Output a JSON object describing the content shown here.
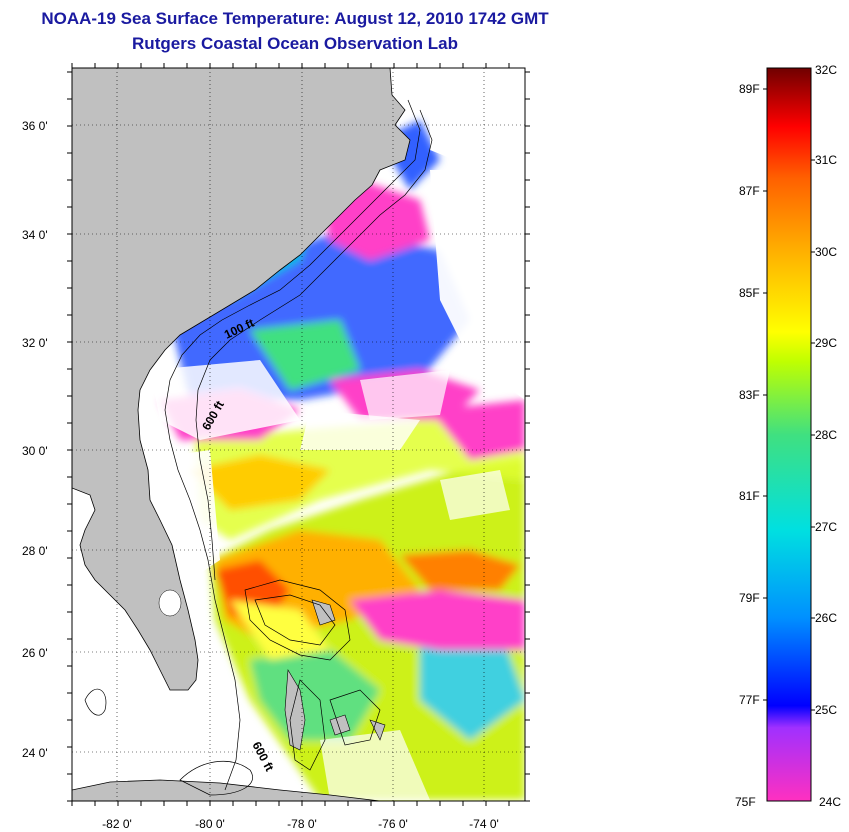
{
  "title": {
    "line1": "NOAA-19 Sea Surface Temperature:  August 12, 2010 1742 GMT",
    "line2": "Rutgers Coastal Ocean Observation Lab"
  },
  "map": {
    "lon_range": [
      -83,
      -73
    ],
    "lat_range": [
      23,
      37
    ],
    "lon_ticks": [
      "-82 0'",
      "-80 0'",
      "-78 0'",
      "-76 0'",
      "-74 0'"
    ],
    "lat_ticks": [
      "36 0'",
      "34 0'",
      "32 0'",
      "30 0'",
      "28 0'",
      "26 0'",
      "24 0'"
    ],
    "contour_labels": [
      "100 ft",
      "600 ft",
      "600 ft"
    ],
    "land_color": "#c0c0c0"
  },
  "colorbar": {
    "celsius_labels": [
      "32C",
      "31C",
      "30C",
      "29C",
      "28C",
      "27C",
      "26C",
      "25C",
      "24C"
    ],
    "fahrenheit_labels": [
      "89F",
      "87F",
      "85F",
      "83F",
      "81F",
      "79F",
      "77F",
      "75F"
    ],
    "range_c": [
      24,
      32
    ],
    "colors": [
      "#ff30c0",
      "#a030ff",
      "#0000ff",
      "#0090ff",
      "#00e0e0",
      "#40e080",
      "#c0ff00",
      "#ffff00",
      "#ffb000",
      "#ff6000",
      "#ff0000",
      "#a00000",
      "#700000"
    ]
  }
}
